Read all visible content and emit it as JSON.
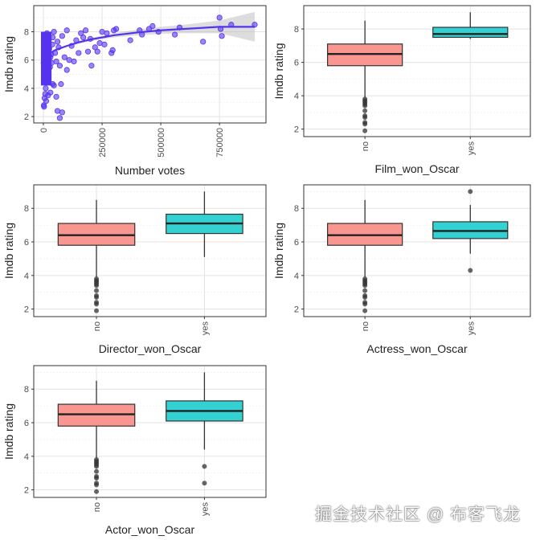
{
  "watermark": "掘金技术社区 @ 布客飞龙",
  "colors": {
    "scatter": "#5533ee",
    "no": "#f8968f",
    "yes": "#33d1d1"
  },
  "chart_data": [
    {
      "type": "scatter",
      "xlabel": "Number votes",
      "ylabel": "Imdb rating",
      "xlim": [
        -41000,
        948000
      ],
      "ylim": [
        1.55,
        9.85
      ],
      "xticks": [
        0,
        250000,
        500000,
        750000
      ],
      "xtick_labels": [
        "0",
        "250000",
        "500000",
        "750000"
      ],
      "yticks": [
        2,
        4,
        6,
        8
      ],
      "ytick_labels": [
        "2",
        "4",
        "6",
        "8"
      ],
      "points": [
        [
          2000,
          2.8
        ],
        [
          3000,
          2.7
        ],
        [
          5000,
          3.3
        ],
        [
          8000,
          3.6
        ],
        [
          12000,
          3.1
        ],
        [
          20000,
          3.5
        ],
        [
          30000,
          3.7
        ],
        [
          40000,
          4.3
        ],
        [
          45000,
          4.2
        ],
        [
          55000,
          3.4
        ],
        [
          60000,
          2.4
        ],
        [
          70000,
          1.9
        ],
        [
          80000,
          2.3
        ],
        [
          75000,
          4.3
        ],
        [
          100000,
          5.3
        ],
        [
          3000,
          4.5
        ],
        [
          6000,
          5.0
        ],
        [
          10000,
          5.5
        ],
        [
          15000,
          6.0
        ],
        [
          5000,
          6.5
        ],
        [
          8000,
          7.0
        ],
        [
          4000,
          7.5
        ],
        [
          12000,
          7.8
        ],
        [
          20000,
          7.2
        ],
        [
          25000,
          6.8
        ],
        [
          30000,
          6.2
        ],
        [
          35000,
          5.8
        ],
        [
          40000,
          7.6
        ],
        [
          45000,
          8.0
        ],
        [
          50000,
          6.5
        ],
        [
          55000,
          5.9
        ],
        [
          60000,
          7.3
        ],
        [
          65000,
          6.9
        ],
        [
          70000,
          5.6
        ],
        [
          80000,
          7.7
        ],
        [
          90000,
          6.2
        ],
        [
          100000,
          8.1
        ],
        [
          110000,
          6.0
        ],
        [
          120000,
          7.0
        ],
        [
          130000,
          5.9
        ],
        [
          140000,
          7.4
        ],
        [
          150000,
          6.5
        ],
        [
          160000,
          7.9
        ],
        [
          170000,
          7.6
        ],
        [
          180000,
          8.1
        ],
        [
          190000,
          6.6
        ],
        [
          200000,
          7.5
        ],
        [
          205000,
          5.6
        ],
        [
          220000,
          6.9
        ],
        [
          230000,
          6.6
        ],
        [
          240000,
          7.2
        ],
        [
          250000,
          8.0
        ],
        [
          260000,
          7.1
        ],
        [
          270000,
          7.9
        ],
        [
          290000,
          6.5
        ],
        [
          295000,
          6.7
        ],
        [
          300000,
          8.1
        ],
        [
          310000,
          8.2
        ],
        [
          370000,
          7.4
        ],
        [
          410000,
          8.1
        ],
        [
          420000,
          7.8
        ],
        [
          450000,
          8.2
        ],
        [
          465000,
          8.4
        ],
        [
          490000,
          8.0
        ],
        [
          560000,
          7.8
        ],
        [
          580000,
          8.3
        ],
        [
          680000,
          7.3
        ],
        [
          750000,
          9.0
        ],
        [
          755000,
          8.2
        ],
        [
          760000,
          7.7
        ],
        [
          800000,
          8.5
        ],
        [
          900000,
          8.5
        ],
        [
          10000,
          4.0
        ],
        [
          18000,
          5.2
        ],
        [
          22000,
          4.8
        ],
        [
          28000,
          5.5
        ],
        [
          33000,
          6.4
        ],
        [
          38000,
          7.1
        ],
        [
          15000,
          7.9
        ],
        [
          9000,
          6.1
        ],
        [
          1000,
          5.8
        ],
        [
          2500,
          7.7
        ],
        [
          7000,
          4.7
        ]
      ],
      "smooth": {
        "x": [
          0,
          50000,
          100000,
          150000,
          200000,
          300000,
          400000,
          500000,
          600000,
          750000,
          900000
        ],
        "y": [
          6.2,
          6.7,
          7.0,
          7.25,
          7.45,
          7.75,
          7.95,
          8.1,
          8.2,
          8.35,
          8.35
        ],
        "lo": [
          6.15,
          6.65,
          6.95,
          7.15,
          7.35,
          7.6,
          7.75,
          7.85,
          7.9,
          7.9,
          7.3
        ],
        "hi": [
          6.25,
          6.75,
          7.05,
          7.35,
          7.55,
          7.9,
          8.15,
          8.35,
          8.5,
          8.8,
          9.4
        ]
      }
    },
    {
      "type": "box",
      "xlabel": "Film_won_Oscar",
      "ylabel": "Imdb rating",
      "ylim": [
        1.55,
        9.4
      ],
      "yticks": [
        2,
        4,
        6,
        8
      ],
      "ytick_labels": [
        "2",
        "4",
        "6",
        "8"
      ],
      "categories": [
        "no",
        "yes"
      ],
      "boxes": [
        {
          "min": 3.9,
          "q1": 5.8,
          "median": 6.5,
          "q3": 7.1,
          "max": 8.5,
          "outliers": [
            3.8,
            3.7,
            3.6,
            3.5,
            3.4,
            3.1,
            2.8,
            2.7,
            2.4,
            2.3,
            1.9
          ]
        },
        {
          "min": 7.4,
          "q1": 7.5,
          "median": 7.7,
          "q3": 8.1,
          "max": 9.0,
          "outliers": []
        }
      ]
    },
    {
      "type": "box",
      "xlabel": "Director_won_Oscar",
      "ylabel": "Imdb rating",
      "ylim": [
        1.55,
        9.4
      ],
      "yticks": [
        2,
        4,
        6,
        8
      ],
      "ytick_labels": [
        "2",
        "4",
        "6",
        "8"
      ],
      "categories": [
        "no",
        "yes"
      ],
      "boxes": [
        {
          "min": 3.9,
          "q1": 5.8,
          "median": 6.4,
          "q3": 7.1,
          "max": 8.5,
          "outliers": [
            3.8,
            3.7,
            3.6,
            3.5,
            3.4,
            3.1,
            2.8,
            2.7,
            2.4,
            2.3,
            1.9
          ]
        },
        {
          "min": 5.1,
          "q1": 6.5,
          "median": 7.1,
          "q3": 7.65,
          "max": 9.0,
          "outliers": []
        }
      ]
    },
    {
      "type": "box",
      "xlabel": "Actress_won_Oscar",
      "ylabel": "Imdb rating",
      "ylim": [
        1.55,
        9.4
      ],
      "yticks": [
        2,
        4,
        6,
        8
      ],
      "ytick_labels": [
        "2",
        "4",
        "6",
        "8"
      ],
      "categories": [
        "no",
        "yes"
      ],
      "boxes": [
        {
          "min": 3.9,
          "q1": 5.8,
          "median": 6.4,
          "q3": 7.1,
          "max": 8.5,
          "outliers": [
            3.8,
            3.7,
            3.6,
            3.5,
            3.4,
            3.1,
            2.8,
            2.7,
            2.4,
            2.3,
            1.9
          ]
        },
        {
          "min": 5.3,
          "q1": 6.2,
          "median": 6.65,
          "q3": 7.2,
          "max": 8.2,
          "outliers": [
            9.0,
            4.3
          ]
        }
      ]
    },
    {
      "type": "box",
      "xlabel": "Actor_won_Oscar",
      "ylabel": "Imdb rating",
      "ylim": [
        1.55,
        9.4
      ],
      "yticks": [
        2,
        4,
        6,
        8
      ],
      "ytick_labels": [
        "2",
        "4",
        "6",
        "8"
      ],
      "categories": [
        "no",
        "yes"
      ],
      "boxes": [
        {
          "min": 3.9,
          "q1": 5.8,
          "median": 6.5,
          "q3": 7.1,
          "max": 8.5,
          "outliers": [
            3.8,
            3.7,
            3.6,
            3.5,
            3.4,
            3.1,
            2.8,
            2.7,
            2.4,
            2.3,
            1.9
          ]
        },
        {
          "min": 4.4,
          "q1": 6.1,
          "median": 6.7,
          "q3": 7.3,
          "max": 9.0,
          "outliers": [
            3.4,
            2.4
          ]
        }
      ]
    }
  ]
}
